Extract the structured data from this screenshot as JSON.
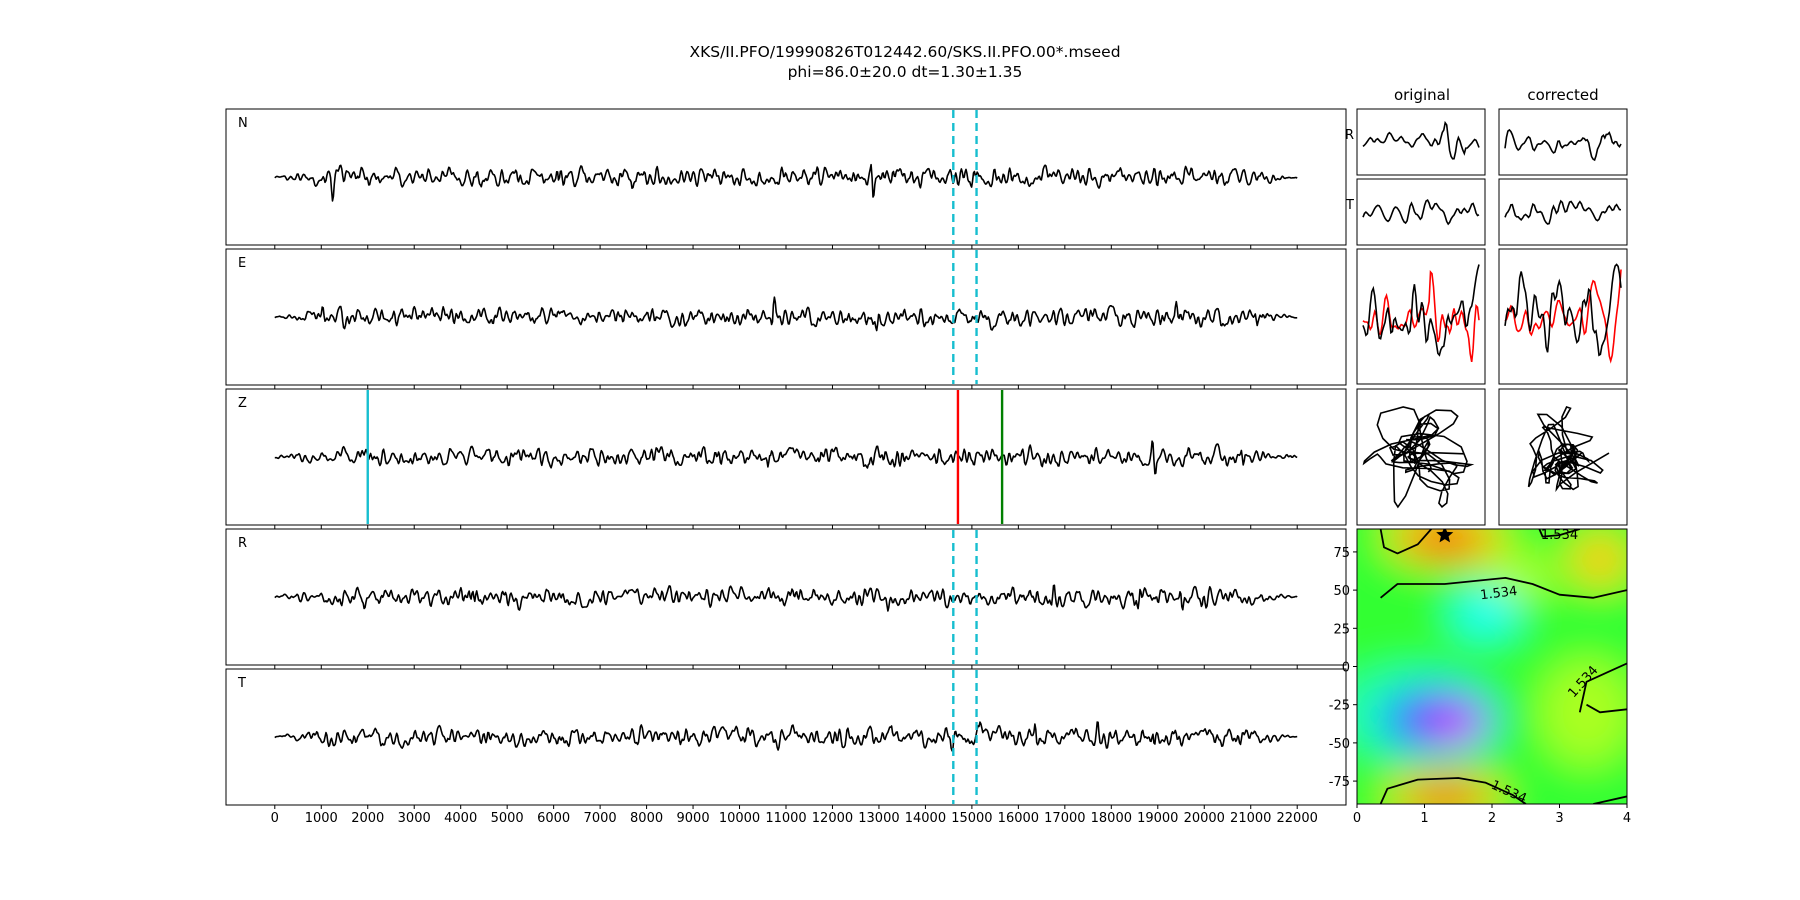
{
  "figure": {
    "title_line1": "XKS/II.PFO/19990826T012442.60/SKS.II.PFO.00*.mseed",
    "title_line2": "phi=86.0±20.0 dt=1.30±1.35"
  },
  "chart_data": [
    {
      "type": "line",
      "panels": [
        {
          "label": "N",
          "markers": [
            "dashed-cyan",
            "dashed-cyan"
          ]
        },
        {
          "label": "E",
          "markers": [
            "dashed-cyan",
            "dashed-cyan"
          ]
        },
        {
          "label": "Z",
          "markers": [
            "solid-cyan",
            "solid-red",
            "solid-green"
          ]
        },
        {
          "label": "R",
          "markers": [
            "dashed-cyan",
            "dashed-cyan"
          ]
        },
        {
          "label": "T",
          "markers": [
            "dashed-cyan",
            "dashed-cyan"
          ]
        }
      ],
      "xticks": [
        "0",
        "1000",
        "2000",
        "3000",
        "4000",
        "5000",
        "6000",
        "7000",
        "8000",
        "9000",
        "10000",
        "11000",
        "12000",
        "13000",
        "14000",
        "15000",
        "16000",
        "17000",
        "18000",
        "19000",
        "20000",
        "21000",
        "22000"
      ],
      "xlim": [
        -1050,
        23050
      ],
      "signal_range": [
        0,
        22000
      ],
      "markers": {
        "window_start": 14600,
        "window_end": 15100,
        "cyan_line": 2000,
        "red_line": 14700,
        "green_line": 15650
      },
      "colors": {
        "trace": "#000000",
        "window": "#17becf",
        "cyan": "#17becf",
        "red": "#ff0000",
        "green": "#008000"
      }
    },
    {
      "type": "line",
      "column_titles": [
        "original",
        "corrected"
      ],
      "row_labels": [
        "R",
        "T"
      ],
      "rows": [
        "R",
        "T",
        "overlay",
        "particle-motion"
      ],
      "colors": {
        "trace": "#000000",
        "overlay": "#ff0000"
      }
    },
    {
      "type": "heatmap",
      "xticks": [
        "0",
        "1",
        "2",
        "3",
        "4"
      ],
      "yticks": [
        "75",
        "50",
        "25",
        "0",
        "-25",
        "-50",
        "-75"
      ],
      "xlim": [
        0,
        4
      ],
      "ylim": [
        -90,
        90
      ],
      "contour_label": "1.534",
      "best_phi": 86.0,
      "best_dt": 1.3,
      "colormap": "gist_rainbow",
      "marker": "star"
    }
  ]
}
